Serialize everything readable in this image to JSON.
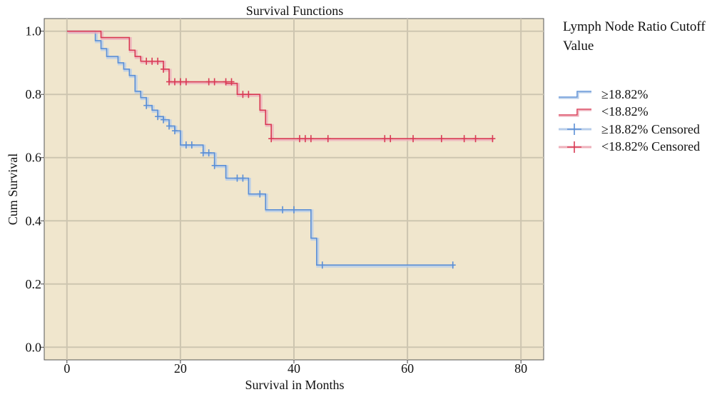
{
  "chart_data": {
    "type": "line",
    "subtype": "kaplan-meier step",
    "title": "Survival Functions",
    "xlabel": "Survival in Months",
    "ylabel": "Cum Survival",
    "xlim": [
      -4,
      84
    ],
    "ylim": [
      -0.04,
      1.04
    ],
    "xticks": [
      0,
      20,
      40,
      60,
      80
    ],
    "yticks": [
      0.0,
      0.2,
      0.4,
      0.6,
      0.8,
      1.0
    ],
    "x_tick_labels": [
      "0",
      "20",
      "40",
      "60",
      "80"
    ],
    "y_tick_labels": [
      "0.0",
      "0.2",
      "0.4",
      "0.6",
      "0.8",
      "1.0"
    ],
    "grid": true,
    "plot_background": "#f0e6cd",
    "legend": {
      "title": "Lymph Node Ratio Cutoff Value",
      "position": "right",
      "entries": [
        "≥18.82%",
        "<18.82%",
        "≥18.82% Censored",
        "<18.82% Censored"
      ]
    },
    "series": [
      {
        "name": "≥18.82%",
        "color": "#5b8fd6",
        "steps": [
          [
            0,
            1.0
          ],
          [
            5,
            0.97
          ],
          [
            6,
            0.945
          ],
          [
            7,
            0.92
          ],
          [
            9,
            0.9
          ],
          [
            10,
            0.88
          ],
          [
            11,
            0.86
          ],
          [
            12,
            0.81
          ],
          [
            13,
            0.79
          ],
          [
            14,
            0.765
          ],
          [
            15,
            0.75
          ],
          [
            16,
            0.73
          ],
          [
            17,
            0.72
          ],
          [
            18,
            0.7
          ],
          [
            19,
            0.685
          ],
          [
            20,
            0.64
          ],
          [
            24,
            0.615
          ],
          [
            26,
            0.575
          ],
          [
            28,
            0.535
          ],
          [
            32,
            0.485
          ],
          [
            35,
            0.435
          ],
          [
            43,
            0.345
          ],
          [
            44,
            0.26
          ],
          [
            68,
            0.26
          ]
        ],
        "censored": [
          [
            14,
            0.765
          ],
          [
            16,
            0.73
          ],
          [
            17,
            0.72
          ],
          [
            18,
            0.7
          ],
          [
            19,
            0.685
          ],
          [
            21,
            0.64
          ],
          [
            22,
            0.64
          ],
          [
            24,
            0.615
          ],
          [
            25,
            0.615
          ],
          [
            26,
            0.575
          ],
          [
            30,
            0.535
          ],
          [
            31,
            0.535
          ],
          [
            34,
            0.485
          ],
          [
            38,
            0.435
          ],
          [
            40,
            0.435
          ],
          [
            45,
            0.26
          ],
          [
            68,
            0.26
          ]
        ]
      },
      {
        "name": "<18.82%",
        "color": "#d93a55",
        "steps": [
          [
            0,
            1.0
          ],
          [
            6,
            0.98
          ],
          [
            11,
            0.94
          ],
          [
            12,
            0.92
          ],
          [
            13,
            0.905
          ],
          [
            17,
            0.88
          ],
          [
            18,
            0.84
          ],
          [
            28,
            0.835
          ],
          [
            30,
            0.8
          ],
          [
            34,
            0.75
          ],
          [
            35,
            0.705
          ],
          [
            36,
            0.66
          ],
          [
            75,
            0.66
          ]
        ],
        "censored": [
          [
            14,
            0.905
          ],
          [
            15,
            0.905
          ],
          [
            16,
            0.905
          ],
          [
            17,
            0.88
          ],
          [
            18,
            0.84
          ],
          [
            19,
            0.84
          ],
          [
            20,
            0.84
          ],
          [
            21,
            0.84
          ],
          [
            25,
            0.84
          ],
          [
            26,
            0.84
          ],
          [
            28,
            0.84
          ],
          [
            29,
            0.84
          ],
          [
            31,
            0.8
          ],
          [
            32,
            0.8
          ],
          [
            36,
            0.66
          ],
          [
            41,
            0.66
          ],
          [
            42,
            0.66
          ],
          [
            43,
            0.66
          ],
          [
            46,
            0.66
          ],
          [
            56,
            0.66
          ],
          [
            57,
            0.66
          ],
          [
            61,
            0.66
          ],
          [
            66,
            0.66
          ],
          [
            70,
            0.66
          ],
          [
            72,
            0.66
          ],
          [
            75,
            0.66
          ]
        ]
      }
    ]
  }
}
